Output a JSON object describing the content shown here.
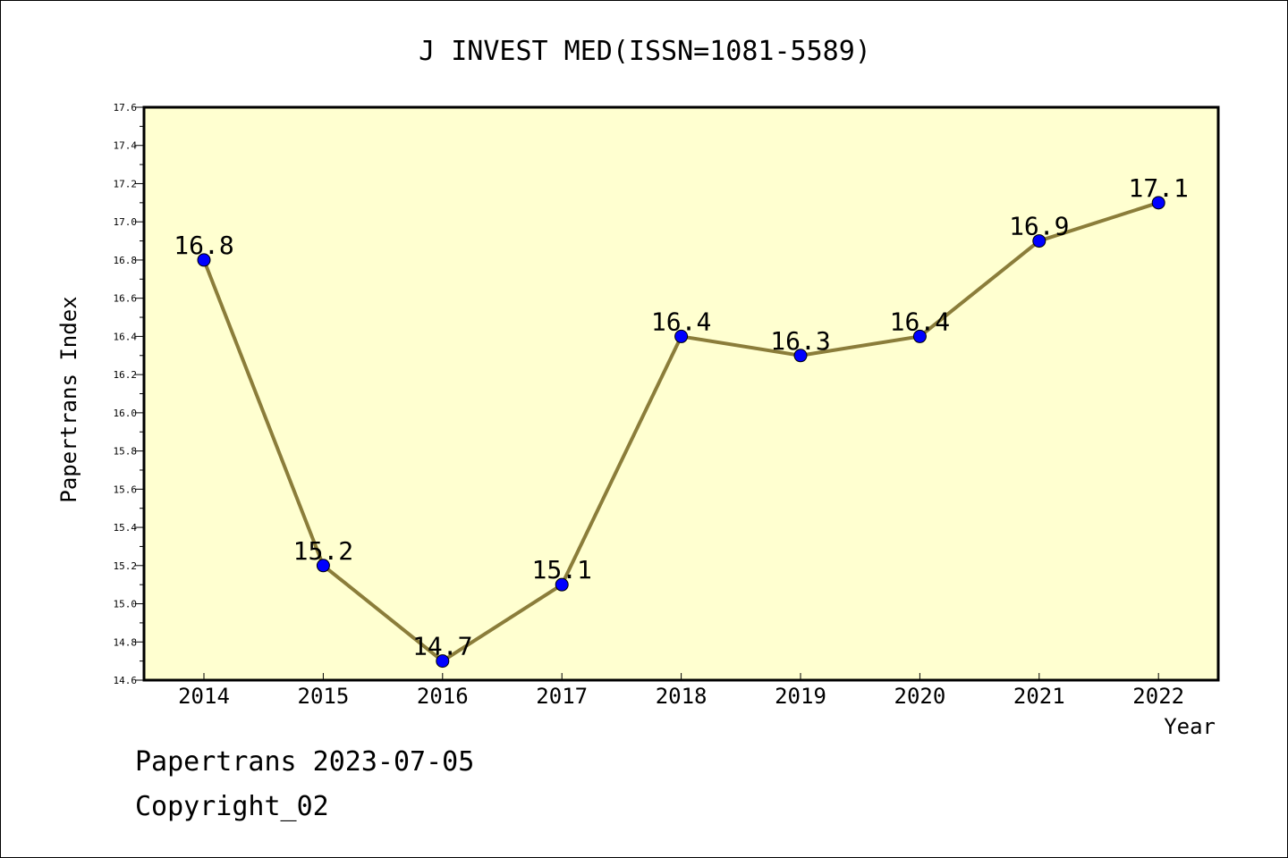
{
  "chart_data": {
    "type": "line",
    "title": "J INVEST MED(ISSN=1081-5589)",
    "xlabel": "Year",
    "ylabel": "Papertrans Index",
    "categories": [
      "2014",
      "2015",
      "2016",
      "2017",
      "2018",
      "2019",
      "2020",
      "2021",
      "2022"
    ],
    "values": [
      16.8,
      15.2,
      14.7,
      15.1,
      16.4,
      16.3,
      16.4,
      16.9,
      17.1
    ],
    "data_labels": [
      "16.8",
      "15.2",
      "14.7",
      "15.1",
      "16.4",
      "16.3",
      "16.4",
      "16.9",
      "17.1"
    ],
    "ylim": [
      14.6,
      17.6
    ],
    "yticks": [
      "14.6",
      "14.8",
      "15.0",
      "15.2",
      "15.4",
      "15.6",
      "15.8",
      "16.0",
      "16.2",
      "16.4",
      "16.6",
      "16.8",
      "17.0",
      "17.2",
      "17.4",
      "17.6"
    ],
    "grid": false,
    "line_color": "#8b7d3a",
    "marker_color": "#0000ff",
    "plot_background": "#ffffd0"
  },
  "footer": {
    "line1": "Papertrans 2023-07-05",
    "line2": "Copyright_02"
  }
}
